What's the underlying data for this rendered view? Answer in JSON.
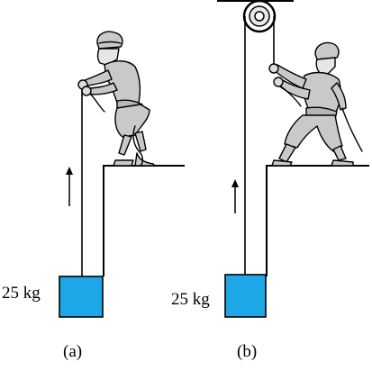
{
  "panels": [
    {
      "id": "a",
      "caption": "(a)",
      "mass_label": "25 kg",
      "has_pulley": false,
      "direction": "up"
    },
    {
      "id": "b",
      "caption": "(b)",
      "mass_label": "25 kg",
      "has_pulley": true,
      "direction": "up"
    }
  ],
  "colors": {
    "block": "#1ea7e6",
    "figure_fill": "#c9c9c9",
    "line": "#000000"
  }
}
